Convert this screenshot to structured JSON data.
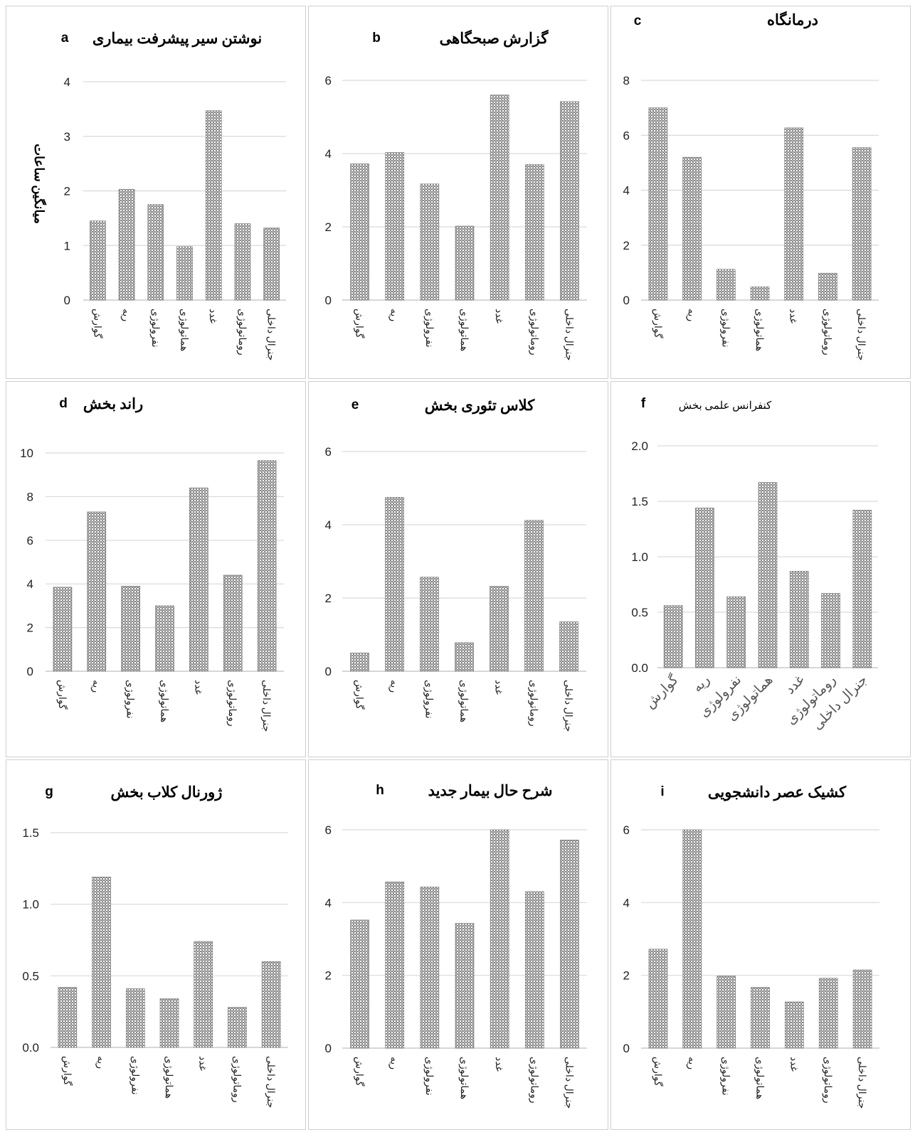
{
  "categories": [
    "گوارش",
    "ریه",
    "نفرولوژی",
    "هماتولوژی",
    "غدد",
    "روماتولوژی",
    "جنرال داخلی"
  ],
  "colors": {
    "bar": "#8a8a8a",
    "grid": "#d9d9d9",
    "border": "#cfcfcf"
  },
  "chart_data": [
    {
      "id": "a",
      "type": "bar",
      "letter": "a",
      "title": "نوشتن سیر پیشرفت بیماری",
      "ylabel": "میانگین ساعات",
      "ylim": [
        0,
        4
      ],
      "ticks": [
        "0",
        "1",
        "2",
        "3",
        "4"
      ],
      "values": [
        1.45,
        2.03,
        1.75,
        0.98,
        3.47,
        1.4,
        1.32
      ],
      "grid": true
    },
    {
      "id": "b",
      "type": "bar",
      "letter": "b",
      "title": "گزارش صبحگاهی",
      "ylim": [
        0,
        6
      ],
      "ticks": [
        "0",
        "2",
        "4",
        "6"
      ],
      "values": [
        3.72,
        4.03,
        3.17,
        2.02,
        5.6,
        3.7,
        5.42
      ],
      "grid": true
    },
    {
      "id": "c",
      "type": "bar",
      "letter": "c",
      "title": "درمانگاه",
      "ylim": [
        0,
        8
      ],
      "ticks": [
        "0",
        "2",
        "4",
        "6",
        "8"
      ],
      "values": [
        7.0,
        5.2,
        1.12,
        0.48,
        6.27,
        0.98,
        5.55
      ],
      "grid": true
    },
    {
      "id": "d",
      "type": "bar",
      "letter": "d",
      "title": "راند بخش",
      "ylim": [
        0,
        10
      ],
      "ticks": [
        "0",
        "2",
        "4",
        "6",
        "8",
        "10"
      ],
      "values": [
        3.85,
        7.3,
        3.9,
        3.0,
        8.4,
        4.4,
        9.65
      ],
      "grid": true
    },
    {
      "id": "e",
      "type": "bar",
      "letter": "e",
      "title": "کلاس تئوری بخش",
      "ylim": [
        0,
        6
      ],
      "ticks": [
        "0",
        "2",
        "4",
        "6"
      ],
      "values": [
        0.5,
        4.75,
        2.57,
        0.78,
        2.32,
        4.12,
        1.35
      ],
      "grid": true
    },
    {
      "id": "f",
      "type": "bar",
      "letter": "f",
      "title": "کنفرانس علمی بخش",
      "ylim": [
        0,
        2
      ],
      "ticks": [
        "0.0",
        "0.5",
        "1.0",
        "1.5",
        "2.0"
      ],
      "values": [
        0.56,
        1.44,
        0.64,
        1.67,
        0.87,
        0.67,
        1.42
      ],
      "grid": true
    },
    {
      "id": "g",
      "type": "bar",
      "letter": "g",
      "title": "ژورنال کلاب بخش",
      "ylim": [
        0,
        1.5
      ],
      "ticks": [
        "0.0",
        "0.5",
        "1.0",
        "1.5"
      ],
      "values": [
        0.42,
        1.19,
        0.41,
        0.34,
        0.74,
        0.28,
        0.6
      ],
      "grid": true
    },
    {
      "id": "h",
      "type": "bar",
      "letter": "h",
      "title": "شرح حال بیمار جدید",
      "ylim": [
        0,
        6
      ],
      "ticks": [
        "0",
        "2",
        "4",
        "6"
      ],
      "values": [
        3.52,
        4.57,
        4.43,
        3.43,
        6.0,
        4.3,
        5.72
      ],
      "grid": true
    },
    {
      "id": "i",
      "type": "bar",
      "letter": "i",
      "title": "کشیک عصر دانشجویی",
      "ylim": [
        0,
        6
      ],
      "ticks": [
        "0",
        "2",
        "4",
        "6"
      ],
      "values": [
        2.72,
        6.0,
        1.98,
        1.67,
        1.27,
        1.92,
        2.15
      ],
      "grid": true
    }
  ]
}
